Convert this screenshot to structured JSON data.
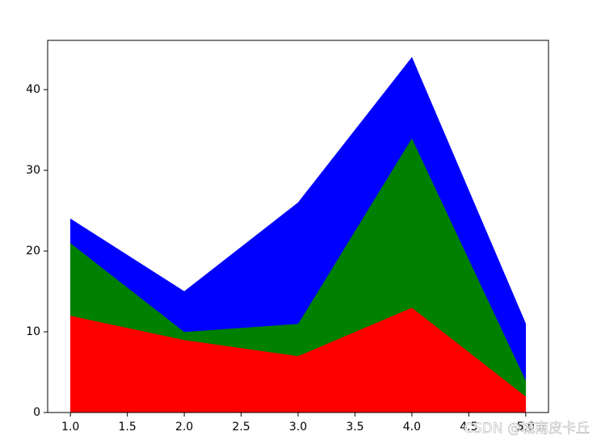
{
  "chart_data": {
    "type": "stackplot",
    "x": [
      1,
      2,
      3,
      4,
      5
    ],
    "series": [
      {
        "color": "#ff0000",
        "values": [
          12,
          9,
          7,
          13,
          2
        ]
      },
      {
        "color": "#008000",
        "values": [
          9,
          1,
          4,
          21,
          2
        ]
      },
      {
        "color": "#0000ff",
        "values": [
          3,
          5,
          15,
          10,
          7
        ]
      }
    ],
    "xlim": [
      0.8,
      5.2
    ],
    "ylim": [
      0,
      46.1
    ],
    "xticks": [
      {
        "value": 1,
        "label": "1.0"
      },
      {
        "value": 1.5,
        "label": "1.5"
      },
      {
        "value": 2,
        "label": "2.0"
      },
      {
        "value": 2.5,
        "label": "2.5"
      },
      {
        "value": 3,
        "label": "3.0"
      },
      {
        "value": 3.5,
        "label": "3.5"
      },
      {
        "value": 4,
        "label": "4.0"
      },
      {
        "value": 4.5,
        "label": "4.5"
      },
      {
        "value": 5,
        "label": "5.0"
      }
    ],
    "yticks": [
      0,
      10,
      20,
      30,
      40
    ],
    "watermark": "CSDN @城南皮卡丘"
  }
}
